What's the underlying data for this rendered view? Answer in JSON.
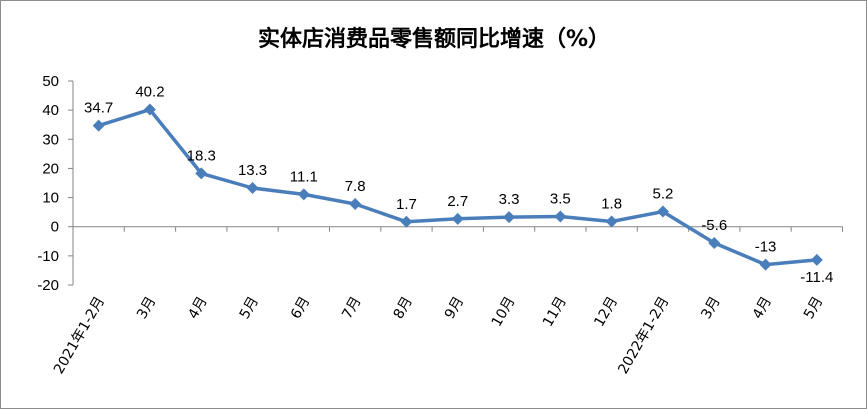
{
  "chart_data": {
    "type": "line",
    "title": "实体店消费品零售额同比增速（%）",
    "categories": [
      "2021年1-2月",
      "3月",
      "4月",
      "5月",
      "6月",
      "7月",
      "8月",
      "9月",
      "10月",
      "11月",
      "12月",
      "2022年1-2月",
      "3月",
      "4月",
      "5月"
    ],
    "series": [
      {
        "values": [
          34.7,
          40.2,
          18.3,
          13.3,
          11.1,
          7.8,
          1.7,
          2.7,
          3.3,
          3.5,
          1.8,
          5.2,
          -5.6,
          -13,
          -11.4
        ]
      }
    ],
    "data_labels": [
      "34.7",
      "40.2",
      "18.3",
      "13.3",
      "11.1",
      "7.8",
      "1.7",
      "2.7",
      "3.3",
      "3.5",
      "1.8",
      "5.2",
      "-5.6",
      "-13",
      "-11.4"
    ],
    "yticks": [
      "50",
      "40",
      "30",
      "20",
      "10",
      "0",
      "-10",
      "-20"
    ],
    "ylim": [
      -20,
      50
    ],
    "y_step": 10,
    "grid": false,
    "legend": "none",
    "line_color": "#4a7ebb",
    "marker": "diamond"
  }
}
